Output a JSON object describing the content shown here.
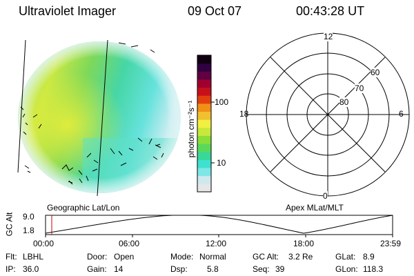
{
  "header": {
    "instrument": "Ultraviolet Imager",
    "date": "09 Oct 07",
    "time": "00:43:28 UT"
  },
  "colorbar": {
    "unit_label": "photon cm⁻²s⁻¹",
    "tick_labels": [
      "100",
      "10"
    ],
    "scale": "log",
    "colors": [
      "#e6e6e6",
      "#cfe8ee",
      "#7fe6e6",
      "#3fe0d0",
      "#38d89a",
      "#5ad85a",
      "#8ade3a",
      "#c8e83a",
      "#f0f040",
      "#f0c030",
      "#f09018",
      "#e04010",
      "#c8101a",
      "#a00030",
      "#600040",
      "#300040",
      "#100010"
    ]
  },
  "left_map": {
    "projection_label": "Geographic Lat/Lon"
  },
  "right_polar": {
    "projection_label": "Apex MLat/MLT",
    "mlt_labels": {
      "top": "12",
      "left": "18",
      "right": "6",
      "bottom": "0"
    },
    "mlat_labels": [
      "60",
      "70",
      "80"
    ]
  },
  "altitude_plot": {
    "ylabel": "GC Alt",
    "y_ticks": [
      "9.0",
      "1.8"
    ],
    "x_ticks": [
      "00:00",
      "06:00",
      "12:00",
      "18:00",
      "23:59"
    ],
    "marker_time": "00:43"
  },
  "info": {
    "flt_label": "Flt:",
    "flt_value": "LBHL",
    "ip_label": "IP:",
    "ip_value": "36.0",
    "door_label": "Door:",
    "door_value": "Open",
    "gain_label": "Gain:",
    "gain_value": "14",
    "mode_label": "Mode:",
    "mode_value": "Normal",
    "dsp_label": "Dsp:",
    "dsp_value": "5.8",
    "gcalt_label": "GC Alt:",
    "gcalt_value": "3.2 Re",
    "seq_label": "Seq:",
    "seq_value": "39",
    "glat_label": "GLat:",
    "glat_value": "8.9",
    "glon_label": "GLon:",
    "glon_value": "118.3"
  }
}
